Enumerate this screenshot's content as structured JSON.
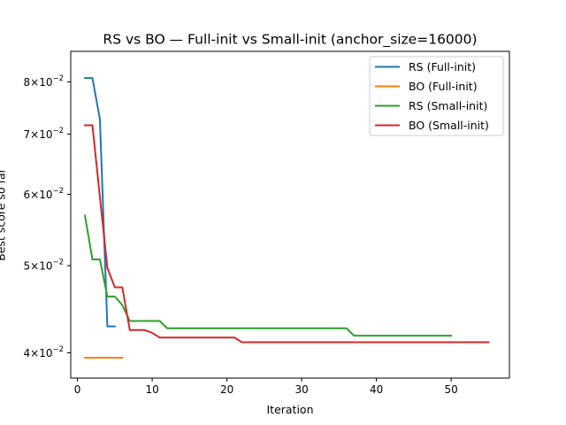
{
  "chart_data": {
    "type": "line",
    "title": "RS vs BO — Full-init vs Small-init (anchor_size=16000)",
    "xlabel": "Iteration",
    "ylabel": "Best score so far",
    "yscale": "log",
    "xlim": [
      -0.9,
      57.8
    ],
    "ylim": [
      0.0375,
      0.0865
    ],
    "x_ticks": [
      0,
      10,
      20,
      30,
      40,
      50
    ],
    "y_ticks": [
      {
        "value": 0.04,
        "mantissa": "4",
        "base": "10",
        "exponent": "−2"
      },
      {
        "value": 0.05,
        "mantissa": "5",
        "base": "10",
        "exponent": "−2"
      },
      {
        "value": 0.06,
        "mantissa": "6",
        "base": "10",
        "exponent": "−2"
      },
      {
        "value": 0.07,
        "mantissa": "7",
        "base": "10",
        "exponent": "−2"
      },
      {
        "value": 0.08,
        "mantissa": "8",
        "base": "10",
        "exponent": "−2"
      }
    ],
    "times_symbol": "×",
    "grid": false,
    "legend_position": "upper right",
    "series": [
      {
        "name": "RS (Full-init)",
        "color": "#1f77b4",
        "x": [
          1,
          2,
          3,
          4,
          5
        ],
        "y": [
          0.0808,
          0.0808,
          0.0727,
          0.0428,
          0.0428
        ]
      },
      {
        "name": "BO (Full-init)",
        "color": "#ff7f0e",
        "x": [
          1,
          2,
          3,
          4,
          5,
          6
        ],
        "y": [
          0.0395,
          0.0395,
          0.0395,
          0.0395,
          0.0395,
          0.0395
        ]
      },
      {
        "name": "RS (Small-init)",
        "color": "#2ca02c",
        "x": [
          1,
          2,
          3,
          4,
          5,
          6,
          7,
          8,
          9,
          10,
          11,
          12,
          36,
          37,
          50
        ],
        "y": [
          0.0568,
          0.0508,
          0.0508,
          0.0462,
          0.0462,
          0.0452,
          0.0434,
          0.0434,
          0.0434,
          0.0434,
          0.0434,
          0.0426,
          0.0426,
          0.0418,
          0.0418
        ]
      },
      {
        "name": "BO (Small-init)",
        "color": "#d62728",
        "x": [
          1,
          2,
          3,
          4,
          5,
          6,
          7,
          8,
          9,
          10,
          11,
          21,
          22,
          55
        ],
        "y": [
          0.0716,
          0.0716,
          0.0596,
          0.0497,
          0.0473,
          0.0473,
          0.0424,
          0.0424,
          0.0424,
          0.0421,
          0.0416,
          0.0416,
          0.0411,
          0.0411
        ]
      }
    ]
  }
}
